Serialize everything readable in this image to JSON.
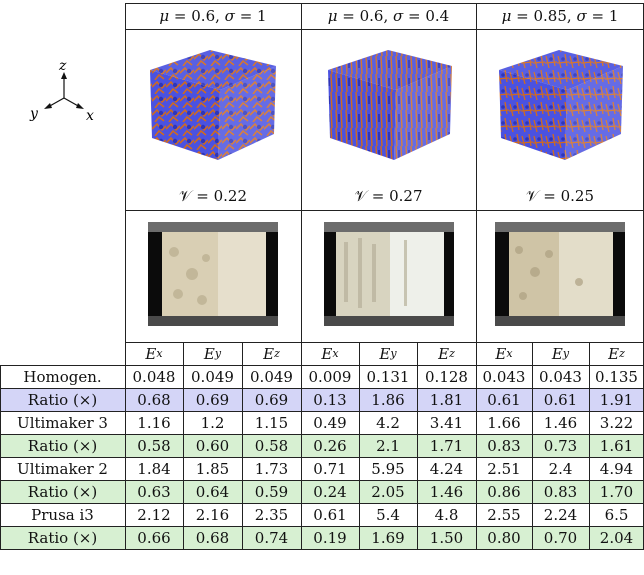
{
  "columns_header": [
    {
      "mu": "0.6",
      "sigma": "1"
    },
    {
      "mu": "0.6",
      "sigma": "0.4"
    },
    {
      "mu": "0.85",
      "sigma": "1"
    }
  ],
  "volume_labels": [
    "𝒱 = 0.22",
    "𝒱 = 0.27",
    "𝒱 = 0.25"
  ],
  "axes_labels": {
    "x": "x",
    "y": "y",
    "z": "z"
  },
  "sub_headers": [
    "Ex",
    "Ey",
    "Ez",
    "Ex",
    "Ey",
    "Ez",
    "Ex",
    "Ey",
    "Ez"
  ],
  "rows": [
    {
      "label": "Homogen.",
      "band": "none",
      "values": [
        "0.048",
        "0.049",
        "0.049",
        "0.009",
        "0.131",
        "0.128",
        "0.043",
        "0.043",
        "0.135"
      ]
    },
    {
      "label": "Ratio (×)",
      "band": "blue",
      "values": [
        "0.68",
        "0.69",
        "0.69",
        "0.13",
        "1.86",
        "1.81",
        "0.61",
        "0.61",
        "1.91"
      ]
    },
    {
      "label": "Ultimaker 3",
      "band": "none",
      "values": [
        "1.16",
        "1.2",
        "1.15",
        "0.49",
        "4.2",
        "3.41",
        "1.66",
        "1.46",
        "3.22"
      ]
    },
    {
      "label": "Ratio (×)",
      "band": "green",
      "values": [
        "0.58",
        "0.60",
        "0.58",
        "0.26",
        "2.1",
        "1.71",
        "0.83",
        "0.73",
        "1.61"
      ]
    },
    {
      "label": "Ultimaker 2",
      "band": "none",
      "values": [
        "1.84",
        "1.85",
        "1.73",
        "0.71",
        "5.95",
        "4.24",
        "2.51",
        "2.4",
        "4.94"
      ]
    },
    {
      "label": "Ratio (×)",
      "band": "green",
      "values": [
        "0.63",
        "0.64",
        "0.59",
        "0.24",
        "2.05",
        "1.46",
        "0.86",
        "0.83",
        "1.70"
      ]
    },
    {
      "label": "Prusa i3",
      "band": "none",
      "values": [
        "2.12",
        "2.16",
        "2.35",
        "0.61",
        "5.4",
        "4.8",
        "2.55",
        "2.24",
        "6.5"
      ]
    },
    {
      "label": "Ratio (×)",
      "band": "green",
      "values": [
        "0.66",
        "0.68",
        "0.74",
        "0.19",
        "1.69",
        "1.50",
        "0.80",
        "0.70",
        "2.04"
      ]
    }
  ],
  "colors": {
    "blue_band": "#d4d5f7",
    "green_band": "#d7f0d2",
    "foam_blue": "#4b52e0",
    "foam_orange": "#d06a1e"
  }
}
